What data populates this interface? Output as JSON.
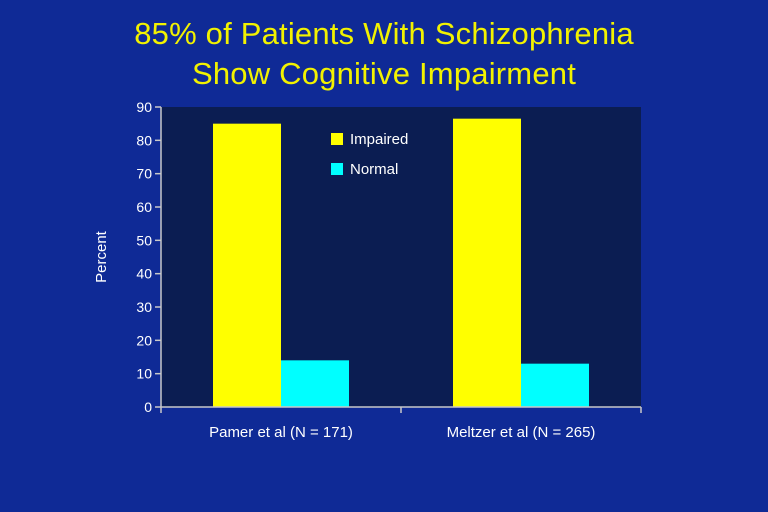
{
  "slide": {
    "title_line1": "85% of Patients With Schizophrenia",
    "title_line2": "Show Cognitive Impairment"
  },
  "colors": {
    "background": "#0f2a96",
    "plot_area": "#0b1d52",
    "title": "#f2f200",
    "axis": "#c8c8c8"
  },
  "chart_data": {
    "type": "bar",
    "categories": [
      "Pamer et al (N = 171)",
      "Meltzer et al  (N = 265)"
    ],
    "series": [
      {
        "name": "Impaired",
        "color": "#ffff00",
        "values": [
          85,
          86.5
        ]
      },
      {
        "name": "Normal",
        "color": "#00ffff",
        "values": [
          14,
          13
        ]
      }
    ],
    "ylabel": "Percent",
    "xlabel": "",
    "ylim": [
      0,
      90
    ],
    "yticks": [
      0,
      10,
      20,
      30,
      40,
      50,
      60,
      70,
      80,
      90
    ],
    "grid": false,
    "legend_position": "top-center"
  }
}
